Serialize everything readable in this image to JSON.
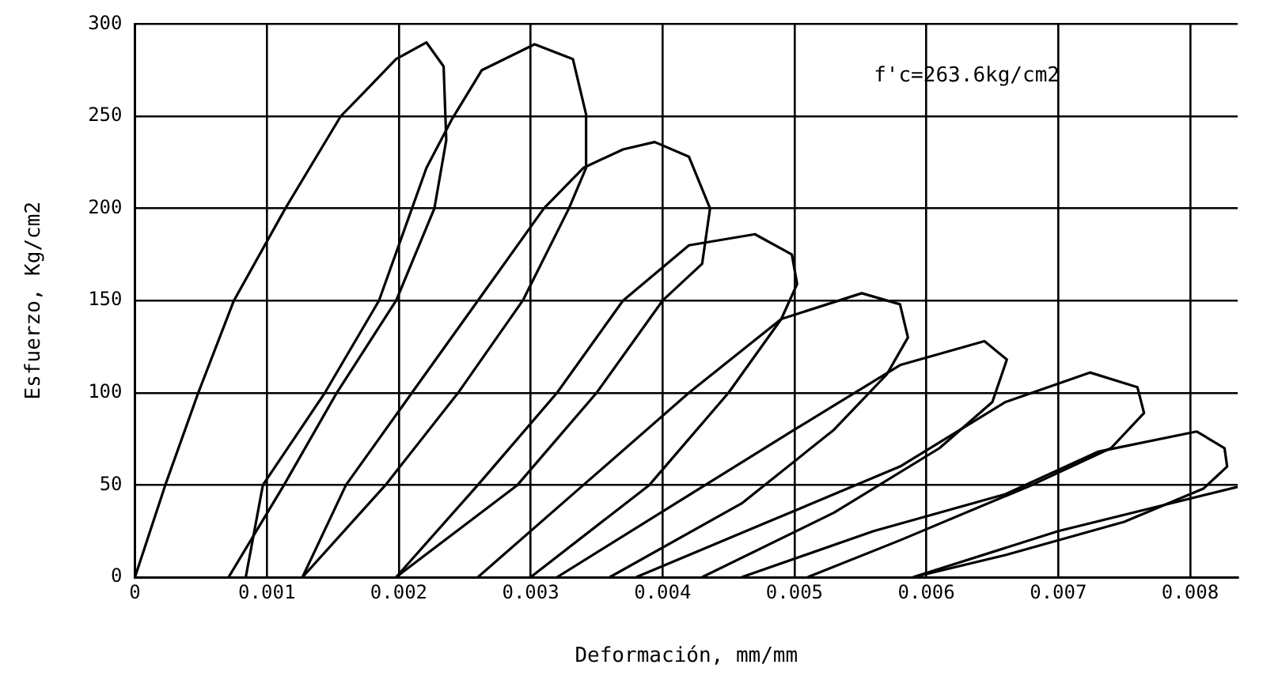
{
  "chart_data": {
    "type": "line",
    "xlabel": "Deformación, mm/mm",
    "ylabel": "Esfuerzo, Kg/cm2",
    "annotations": [
      "f'c=263.6kg/cm2"
    ],
    "xlim": [
      0,
      0.00836
    ],
    "xticks": [
      0,
      0.001,
      0.002,
      0.003,
      0.004,
      0.005,
      0.006,
      0.007,
      0.008
    ],
    "ylim": [
      0,
      300
    ],
    "yticks": [
      0,
      50,
      100,
      150,
      200,
      250,
      300
    ],
    "grid": true,
    "legend": false,
    "marker": "none",
    "line_style": "solid",
    "series": [
      {
        "color": "#000000",
        "x": [
          0,
          0.00023,
          0.00048,
          0.00075,
          0.00114,
          0.00156,
          0.00171,
          0.00198,
          0.00221,
          0.00234,
          0.00236,
          0.00227,
          0.00198,
          0.00153,
          0.00113,
          0.00071
        ],
        "values": [
          0,
          50,
          100,
          150,
          200,
          250,
          261,
          281,
          290,
          277,
          237,
          200,
          150,
          100,
          50,
          0
        ]
      },
      {
        "color": "#000000",
        "x": [
          0.00084,
          0.00097,
          0.00144,
          0.00185,
          0.0021,
          0.00221,
          0.0024,
          0.00263,
          0.00303,
          0.00332,
          0.00342,
          0.00342,
          0.00329,
          0.00294,
          0.00245,
          0.0019,
          0.00127
        ],
        "values": [
          0,
          50,
          100,
          150,
          200,
          222,
          248,
          275,
          289,
          281,
          251,
          222,
          200,
          150,
          100,
          50,
          0
        ]
      },
      {
        "color": "#000000",
        "x": [
          0.00127,
          0.0016,
          0.0021,
          0.0026,
          0.0031,
          0.0034,
          0.0037,
          0.00394,
          0.0042,
          0.00436,
          0.0043,
          0.004,
          0.0035,
          0.0029,
          0.00198
        ],
        "values": [
          0,
          50,
          100,
          150,
          200,
          222,
          232,
          236,
          228,
          200,
          170,
          150,
          100,
          50,
          0
        ]
      },
      {
        "color": "#000000",
        "x": [
          0.00198,
          0.0026,
          0.0032,
          0.0037,
          0.0042,
          0.0047,
          0.00498,
          0.00502,
          0.0049,
          0.0045,
          0.0039,
          0.003
        ],
        "values": [
          0,
          50,
          100,
          150,
          180,
          186,
          175,
          159,
          140,
          100,
          50,
          0
        ]
      },
      {
        "color": "#000000",
        "x": [
          0.0026,
          0.0034,
          0.0042,
          0.0049,
          0.00551,
          0.0058,
          0.00586,
          0.0057,
          0.0053,
          0.0046,
          0.0036
        ],
        "values": [
          0,
          50,
          100,
          140,
          154,
          148,
          130,
          110,
          80,
          40,
          0
        ]
      },
      {
        "color": "#000000",
        "x": [
          0.0032,
          0.0041,
          0.005,
          0.0058,
          0.00644,
          0.00661,
          0.0065,
          0.0061,
          0.0053,
          0.0043
        ],
        "values": [
          0,
          40,
          80,
          115,
          128,
          118,
          95,
          70,
          35,
          0
        ]
      },
      {
        "color": "#000000",
        "x": [
          0.0038,
          0.0048,
          0.0058,
          0.0066,
          0.00724,
          0.0076,
          0.00765,
          0.0074,
          0.0068,
          0.0058,
          0.0051
        ],
        "values": [
          0,
          30,
          60,
          95,
          111,
          103,
          89,
          70,
          50,
          20,
          0
        ]
      },
      {
        "color": "#000000",
        "x": [
          0.0046,
          0.0056,
          0.0066,
          0.0073,
          0.00805,
          0.00826,
          0.00828,
          0.0081,
          0.0075,
          0.0066,
          0.0059
        ],
        "values": [
          0,
          25,
          45,
          68,
          79,
          70,
          60,
          48,
          30,
          12,
          0
        ]
      },
      {
        "color": "#000000",
        "x": [
          0.0059,
          0.007,
          0.00836
        ],
        "values": [
          0,
          25,
          49
        ]
      }
    ]
  }
}
